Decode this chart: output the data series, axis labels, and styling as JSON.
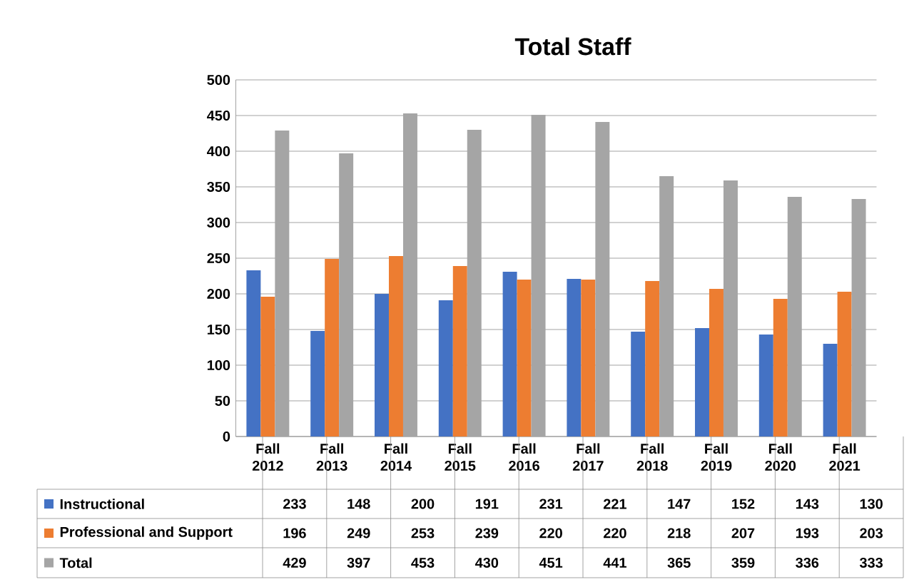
{
  "chart_data": {
    "type": "bar",
    "title": "Total Staff",
    "categories": [
      "Fall 2012",
      "Fall 2013",
      "Fall 2014",
      "Fall 2015",
      "Fall 2016",
      "Fall 2017",
      "Fall 2018",
      "Fall 2019",
      "Fall 2020",
      "Fall 2021"
    ],
    "series": [
      {
        "name": "Instructional",
        "color": "#4472c4",
        "values": [
          233,
          148,
          200,
          191,
          231,
          221,
          147,
          152,
          143,
          130
        ]
      },
      {
        "name": "Professional and Support",
        "color": "#ed7d31",
        "values": [
          196,
          249,
          253,
          239,
          220,
          220,
          218,
          207,
          193,
          203
        ]
      },
      {
        "name": "Total",
        "color": "#a5a5a5",
        "values": [
          429,
          397,
          453,
          430,
          451,
          441,
          365,
          359,
          336,
          333
        ]
      }
    ],
    "ylim": [
      0,
      500
    ],
    "yticks": [
      0,
      50,
      100,
      150,
      200,
      250,
      300,
      350,
      400,
      450,
      500
    ],
    "grid": "y",
    "legend": "bottom",
    "data_labels": true
  }
}
